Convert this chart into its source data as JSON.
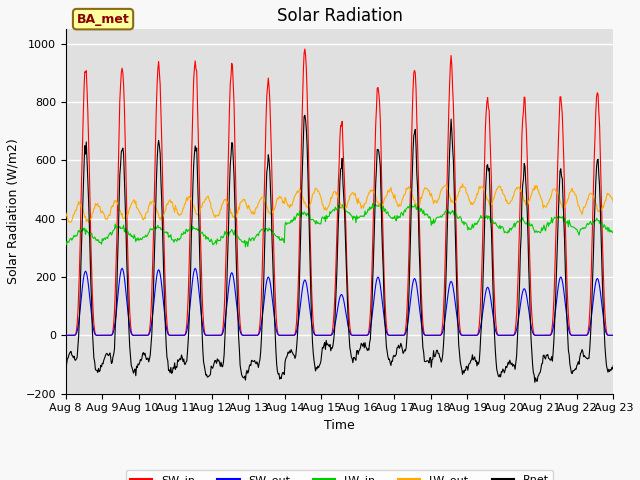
{
  "title": "Solar Radiation",
  "ylabel": "Solar Radiation (W/m2)",
  "xlabel": "Time",
  "ylim": [
    -200,
    1050
  ],
  "yticks": [
    -200,
    0,
    200,
    400,
    600,
    800,
    1000
  ],
  "n_days": 15,
  "start_day": 8,
  "legend_label": "BA_met",
  "series_colors": {
    "SW_in": "#ff0000",
    "SW_out": "#0000ff",
    "LW_in": "#00cc00",
    "LW_out": "#ffaa00",
    "Rnet": "#000000"
  },
  "plot_bg_color": "#e0e0e0",
  "fig_bg_color": "#f8f8f8",
  "grid_color": "#ffffff",
  "title_fontsize": 12,
  "axis_fontsize": 9,
  "tick_fontsize": 8,
  "sw_in_peaks": [
    920,
    930,
    920,
    950,
    920,
    880,
    970,
    725,
    865,
    910,
    935,
    820,
    810,
    810,
    840
  ],
  "sw_out_peaks": [
    220,
    230,
    225,
    230,
    215,
    200,
    190,
    140,
    200,
    195,
    185,
    165,
    160,
    200,
    195
  ],
  "lw_in_base": [
    330,
    340,
    340,
    340,
    325,
    335,
    390,
    410,
    415,
    415,
    395,
    375,
    365,
    375,
    365
  ],
  "lw_out_base": [
    390,
    400,
    400,
    415,
    405,
    415,
    440,
    430,
    440,
    445,
    455,
    450,
    450,
    440,
    425
  ]
}
